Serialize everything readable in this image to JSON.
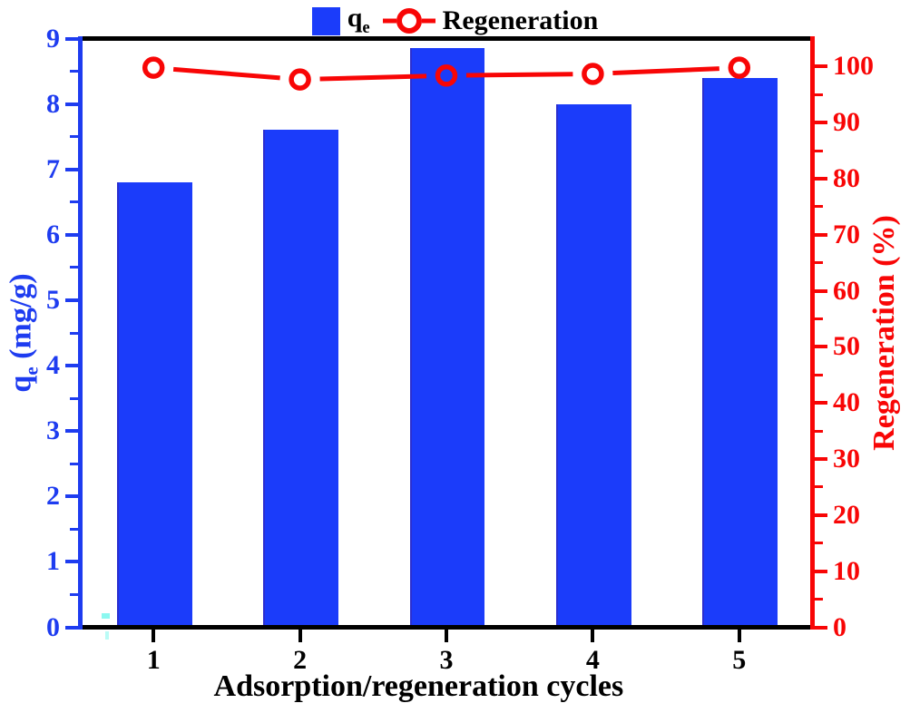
{
  "colors": {
    "bar_fill": "#1B3CFA",
    "bar_edge": "#2B2FD0",
    "left_axis": "#1E3CF0",
    "right_axis": "#F80606",
    "line": "#F80606",
    "black_axis": "#000000",
    "background": "#FFFFFF",
    "artifact_cyan": "#8CF8F0"
  },
  "legend": {
    "qe_base": "q",
    "qe_sub": "e",
    "regeneration_label": "Regeneration"
  },
  "axes": {
    "x": {
      "title": "Adsorption/regeneration cycles",
      "lim": [
        0.5,
        5.5
      ],
      "ticks": [
        "1",
        "2",
        "3",
        "4",
        "5"
      ],
      "tick_values": [
        1,
        2,
        3,
        4,
        5
      ]
    },
    "left": {
      "title_base": "q",
      "title_sub": "e",
      "title_rest": " (mg/g)",
      "lim": [
        0,
        9
      ],
      "major": [
        0,
        1,
        2,
        3,
        4,
        5,
        6,
        7,
        8,
        9
      ],
      "minor": [
        0.5,
        1.5,
        2.5,
        3.5,
        4.5,
        5.5,
        6.5,
        7.5,
        8.5
      ]
    },
    "right": {
      "title": "Regeneration (%)",
      "lim": [
        0,
        105
      ],
      "major": [
        0,
        10,
        20,
        30,
        40,
        50,
        60,
        70,
        80,
        90,
        100
      ],
      "minor": [
        5,
        15,
        25,
        35,
        45,
        55,
        65,
        75,
        85,
        95
      ]
    }
  },
  "chart_data": {
    "type": "bar",
    "categories": [
      1,
      2,
      3,
      4,
      5
    ],
    "series": [
      {
        "name": "qe",
        "type": "bar",
        "axis": "left",
        "bar_width": 0.5,
        "values": [
          6.8,
          7.6,
          8.85,
          8.0,
          8.4
        ]
      },
      {
        "name": "Regeneration",
        "type": "line",
        "axis": "right",
        "marker": "open-circle",
        "values": [
          99.8,
          97.7,
          98.4,
          98.7,
          99.8
        ]
      }
    ],
    "title": "",
    "xlabel": "Adsorption/regeneration cycles",
    "ylabel_left": "qe (mg/g)",
    "ylabel_right": "Regeneration (%)",
    "xlim": [
      0.5,
      5.5
    ],
    "ylim_left": [
      0,
      9
    ],
    "ylim_right": [
      0,
      105
    ],
    "grid": false,
    "legend_position": "top-center"
  }
}
